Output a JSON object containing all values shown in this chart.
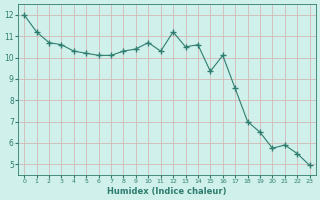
{
  "x": [
    0,
    1,
    2,
    3,
    4,
    5,
    6,
    7,
    8,
    9,
    10,
    11,
    12,
    13,
    14,
    15,
    16,
    17,
    18,
    19,
    20,
    21,
    22,
    23
  ],
  "y": [
    12.0,
    11.2,
    10.7,
    10.6,
    10.3,
    10.2,
    10.1,
    10.1,
    10.3,
    10.4,
    10.7,
    10.3,
    11.2,
    10.5,
    10.6,
    9.35,
    10.1,
    8.55,
    7.0,
    6.5,
    5.75,
    5.9,
    5.5,
    4.95
  ],
  "line_color": "#2e7d6e",
  "marker": "+",
  "marker_size": 4,
  "bg_color": "#cff0eb",
  "grid_color": "#d4b8b8",
  "xlabel": "Humidex (Indice chaleur)",
  "xlabel_color": "#2e7d6e",
  "tick_color": "#2e7d6e",
  "xlim": [
    -0.5,
    23.5
  ],
  "ylim": [
    4.5,
    12.5
  ],
  "yticks": [
    5,
    6,
    7,
    8,
    9,
    10,
    11,
    12
  ],
  "xticks": [
    0,
    1,
    2,
    3,
    4,
    5,
    6,
    7,
    8,
    9,
    10,
    11,
    12,
    13,
    14,
    15,
    16,
    17,
    18,
    19,
    20,
    21,
    22,
    23
  ]
}
